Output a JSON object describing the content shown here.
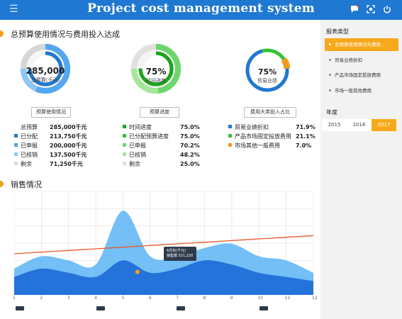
{
  "header": {
    "title": "Project cost management system",
    "menu_icon": "hamburger-icon",
    "right_icons": [
      "message-icon",
      "fullscreen-icon",
      "power-icon"
    ]
  },
  "budget_section": {
    "title": "总预算使用情况与费用投入达成",
    "ring1": {
      "value": "285,000",
      "sub": "总预算(千元)",
      "button": "预算使用情况"
    },
    "ring2": {
      "value": "75%",
      "sub": "时间进度",
      "button": "预算进度"
    },
    "ring3": {
      "value": "75%",
      "sub": "贸易业绩",
      "button": "费用大类投入占比"
    },
    "stats1": [
      {
        "label": "总预算",
        "value": "285,000千元",
        "color": ""
      },
      {
        "label": "已分配",
        "value": "213,750千元",
        "color": "#1f78d1"
      },
      {
        "label": "已申报",
        "value": "200,000千元",
        "color": "#4da3f0"
      },
      {
        "label": "已核销",
        "value": "137,500千元",
        "color": "#8cc7f7"
      },
      {
        "label": "剩余",
        "value": "71,250千元",
        "color": "#d9d9d9"
      }
    ],
    "stats2": [
      {
        "label": "时间进度",
        "value": "75.0%",
        "color": "#1aa51a"
      },
      {
        "label": "已分配预算进度",
        "value": "75.0%",
        "color": "#35c235"
      },
      {
        "label": "已申报",
        "value": "70.2%",
        "color": "#6bd66b"
      },
      {
        "label": "已核销",
        "value": "48.2%",
        "color": "#a4e69a"
      },
      {
        "label": "剩余",
        "value": "25.0%",
        "color": "#e0e0e0"
      }
    ],
    "stats3": [
      {
        "label": "贸易业绩折扣",
        "value": "71.9%",
        "color": "#1f78d1"
      },
      {
        "label": "产品市场固定投放费用",
        "value": "21.1%",
        "color": "#35c235"
      },
      {
        "label": "市场其他一般费用",
        "value": "7.0%",
        "color": "#f59b1b"
      }
    ]
  },
  "sales_section": {
    "title": "销售情况",
    "tooltip": {
      "line1": "6月份(千元)",
      "line2": "销售额 521,220"
    }
  },
  "chart_data": {
    "type": "area",
    "x": [
      1,
      2,
      3,
      4,
      5,
      6,
      7,
      8,
      9,
      10,
      11,
      12
    ],
    "x_tick_labels": [
      "1",
      "2",
      "3",
      "4",
      "5",
      "6",
      "7",
      "8",
      "9",
      "10",
      "11",
      "12"
    ],
    "series": [
      {
        "values": [
          30,
          45,
          40,
          35,
          100,
          45,
          45,
          55,
          60,
          45,
          40,
          25
        ],
        "color": "#5ab4f5"
      },
      {
        "values": [
          20,
          30,
          25,
          20,
          40,
          25,
          30,
          40,
          35,
          25,
          20,
          15
        ],
        "color": "#1f6fd8"
      },
      {
        "values": [
          48,
          50,
          52,
          54,
          56,
          58,
          60,
          62,
          64,
          66,
          68,
          70
        ],
        "color": "#e85a2a"
      }
    ],
    "ylim": [
      0,
      120
    ],
    "grid": true,
    "tooltip_point": {
      "x": 6,
      "y": 50
    }
  },
  "sidebar": {
    "report_type_title": "报表类型",
    "items": [
      {
        "label": "总预算使用情况与费用...",
        "active": true
      },
      {
        "label": "贸易业绩折扣",
        "active": false
      },
      {
        "label": "产品市场固定投放费用",
        "active": false
      },
      {
        "label": "市场一般其他费用",
        "active": false
      }
    ],
    "year_title": "年度",
    "years": [
      {
        "label": "2015",
        "active": false
      },
      {
        "label": "2016",
        "active": false
      },
      {
        "label": "2017",
        "active": true
      }
    ]
  }
}
